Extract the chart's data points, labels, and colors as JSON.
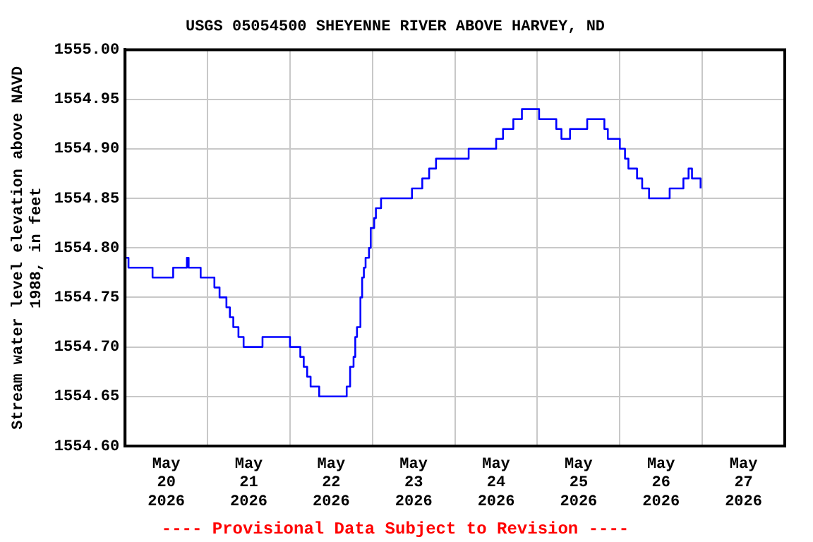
{
  "chart_data": {
    "type": "step",
    "title": "USGS 05054500 SHEYENNE RIVER ABOVE HARVEY, ND",
    "ylabel": "Stream water level elevation above NAVD 1988, in feet",
    "annotations": [
      "---- Provisional Data Subject to Revision ----"
    ],
    "x": [
      "2026-05-20T00:00",
      "2026-05-20T01:00",
      "2026-05-20T08:00",
      "2026-05-20T14:00",
      "2026-05-20T18:00",
      "2026-05-20T18:30",
      "2026-05-20T22:00",
      "2026-05-21T02:00",
      "2026-05-21T03:30",
      "2026-05-21T05:30",
      "2026-05-21T06:30",
      "2026-05-21T07:30",
      "2026-05-21T09:00",
      "2026-05-21T10:30",
      "2026-05-21T16:00",
      "2026-05-22T00:00",
      "2026-05-22T03:00",
      "2026-05-22T04:00",
      "2026-05-22T05:00",
      "2026-05-22T06:00",
      "2026-05-22T08:30",
      "2026-05-22T16:30",
      "2026-05-22T17:30",
      "2026-05-22T18:30",
      "2026-05-22T19:00",
      "2026-05-22T19:30",
      "2026-05-22T20:30",
      "2026-05-22T21:00",
      "2026-05-22T21:30",
      "2026-05-22T22:00",
      "2026-05-22T23:00",
      "2026-05-22T23:30",
      "2026-05-23T00:30",
      "2026-05-23T01:00",
      "2026-05-23T02:30",
      "2026-05-23T11:30",
      "2026-05-23T14:30",
      "2026-05-23T16:30",
      "2026-05-23T18:30",
      "2026-05-24T04:00",
      "2026-05-24T12:00",
      "2026-05-24T14:00",
      "2026-05-24T17:00",
      "2026-05-24T19:30",
      "2026-05-25T00:30",
      "2026-05-25T05:30",
      "2026-05-25T07:00",
      "2026-05-25T09:30",
      "2026-05-25T14:30",
      "2026-05-25T19:30",
      "2026-05-25T20:30",
      "2026-05-26T00:00",
      "2026-05-26T01:30",
      "2026-05-26T02:30",
      "2026-05-26T05:00",
      "2026-05-26T06:30",
      "2026-05-26T08:30",
      "2026-05-26T14:30",
      "2026-05-26T18:30",
      "2026-05-26T20:00",
      "2026-05-26T21:00",
      "2026-05-26T23:30"
    ],
    "series": [
      {
        "color": "#0000ff",
        "values": [
          1554.79,
          1554.78,
          1554.77,
          1554.78,
          1554.79,
          1554.78,
          1554.77,
          1554.76,
          1554.75,
          1554.74,
          1554.73,
          1554.72,
          1554.71,
          1554.7,
          1554.71,
          1554.7,
          1554.69,
          1554.68,
          1554.67,
          1554.66,
          1554.65,
          1554.66,
          1554.68,
          1554.69,
          1554.71,
          1554.72,
          1554.75,
          1554.77,
          1554.78,
          1554.79,
          1554.8,
          1554.82,
          1554.83,
          1554.84,
          1554.85,
          1554.86,
          1554.87,
          1554.88,
          1554.89,
          1554.9,
          1554.91,
          1554.92,
          1554.93,
          1554.94,
          1554.93,
          1554.92,
          1554.91,
          1554.92,
          1554.93,
          1554.92,
          1554.91,
          1554.9,
          1554.89,
          1554.88,
          1554.87,
          1554.86,
          1554.85,
          1554.86,
          1554.87,
          1554.88,
          1554.87,
          1554.86
        ]
      }
    ],
    "xlim": [
      "2026-05-20T00:00",
      "2026-05-28T00:00"
    ],
    "xticks": [
      {
        "value": "2026-05-20T12:00",
        "label": "May 20 2026"
      },
      {
        "value": "2026-05-21T00:00",
        "label": null
      },
      {
        "value": "2026-05-21T12:00",
        "label": "May 21 2026"
      },
      {
        "value": "2026-05-22T00:00",
        "label": null
      },
      {
        "value": "2026-05-22T12:00",
        "label": "May 22 2026"
      },
      {
        "value": "2026-05-23T00:00",
        "label": null
      },
      {
        "value": "2026-05-23T12:00",
        "label": "May 23 2026"
      },
      {
        "value": "2026-05-24T00:00",
        "label": null
      },
      {
        "value": "2026-05-24T12:00",
        "label": "May 24 2026"
      },
      {
        "value": "2026-05-25T00:00",
        "label": null
      },
      {
        "value": "2026-05-25T12:00",
        "label": "May 25 2026"
      },
      {
        "value": "2026-05-26T00:00",
        "label": null
      },
      {
        "value": "2026-05-26T12:00",
        "label": "May 26 2026"
      },
      {
        "value": "2026-05-27T00:00",
        "label": null
      },
      {
        "value": "2026-05-27T12:00",
        "label": "May 27 2026"
      }
    ],
    "ylim": [
      1554.6,
      1555.0
    ],
    "yticks": [
      {
        "value": 1554.6,
        "label": "1554.60"
      },
      {
        "value": 1554.65,
        "label": "1554.65"
      },
      {
        "value": 1554.7,
        "label": "1554.70"
      },
      {
        "value": 1554.75,
        "label": "1554.75"
      },
      {
        "value": 1554.8,
        "label": "1554.80"
      },
      {
        "value": 1554.85,
        "label": "1554.85"
      },
      {
        "value": 1554.9,
        "label": "1554.90"
      },
      {
        "value": 1554.95,
        "label": "1554.95"
      },
      {
        "value": 1555.0,
        "label": "1555.00"
      }
    ],
    "grid": true,
    "legend": false
  }
}
